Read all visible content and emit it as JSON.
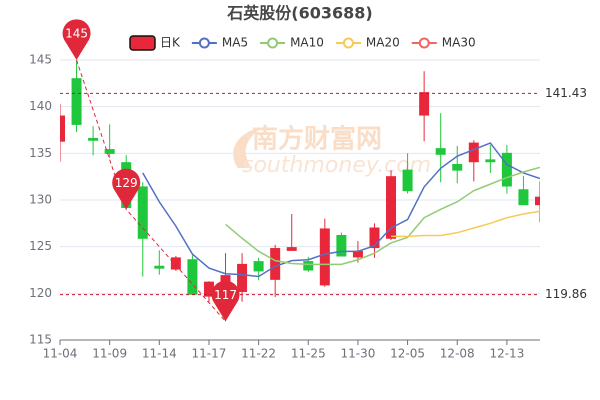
{
  "chart_data": {
    "type": "candlestick",
    "title": "石英股份(603688)",
    "watermark": [
      "南方财富网",
      "southmoney.com"
    ],
    "categories": [
      "11-04",
      null,
      null,
      "11-09",
      null,
      null,
      "11-14",
      null,
      null,
      "11-17",
      null,
      null,
      "11-22",
      null,
      null,
      "11-25",
      null,
      null,
      "11-30",
      null,
      null,
      "12-05",
      null,
      null,
      "12-08",
      null,
      null,
      "12-13",
      null,
      null
    ],
    "ylim": [
      115,
      145
    ],
    "yticks": [
      115,
      120,
      125,
      130,
      135,
      140,
      145
    ],
    "grid": true,
    "up_color": "#e8283a",
    "down_color": "#1fc73c",
    "candles": {
      "name": "日K",
      "open": [
        136.3,
        143.0,
        136.6,
        135.4,
        134.0,
        131.4,
        122.9,
        122.6,
        123.6,
        119.7,
        119.3,
        120.2,
        123.4,
        121.5,
        124.6,
        123.4,
        120.9,
        126.2,
        123.9,
        124.9,
        125.9,
        133.2,
        139.1,
        135.5,
        133.8,
        134.1,
        134.3,
        135.0,
        131.1,
        129.5
      ],
      "close": [
        139.0,
        138.1,
        136.4,
        135.0,
        129.2,
        125.9,
        122.7,
        123.8,
        119.9,
        121.2,
        121.9,
        123.1,
        122.4,
        124.8,
        124.9,
        122.5,
        126.9,
        124.0,
        124.5,
        127.0,
        132.5,
        131.0,
        141.5,
        134.9,
        133.2,
        136.1,
        134.1,
        131.5,
        129.5,
        130.3
      ],
      "high": [
        140.3,
        145,
        137.9,
        138.1,
        134.8,
        131.9,
        124.6,
        124.0,
        124.1,
        121.3,
        124.3,
        124.3,
        123.8,
        125.2,
        128.5,
        123.9,
        128.0,
        126.5,
        125.6,
        127.5,
        133.2,
        135.0,
        143.8,
        139.3,
        135.8,
        136.4,
        135.9,
        135.9,
        132.6,
        132.0
      ],
      "low": [
        134.1,
        137.3,
        134.8,
        134.5,
        129,
        121.8,
        122.0,
        122.4,
        119.9,
        119.0,
        117,
        119.1,
        121.4,
        119.6,
        124.6,
        122.3,
        120.7,
        124.0,
        123.3,
        123.8,
        125.7,
        130.7,
        136.3,
        131.9,
        131.8,
        132.0,
        132.9,
        130.7,
        129.5,
        127.6
      ]
    },
    "series": [
      {
        "name": "MA5",
        "color": "#5470c6",
        "values": [
          null,
          null,
          null,
          null,
          null,
          132.9,
          129.8,
          127.2,
          124.2,
          122.7,
          122.1,
          122.0,
          121.8,
          122.9,
          123.5,
          123.6,
          124.2,
          124.5,
          124.5,
          125.1,
          127.0,
          127.9,
          131.4,
          133.4,
          134.7,
          135.4,
          136.1,
          133.8,
          132.9,
          132.3
        ]
      },
      {
        "name": "MA10",
        "color": "#91cc75",
        "values": [
          null,
          null,
          null,
          null,
          null,
          null,
          null,
          null,
          null,
          null,
          127.4,
          125.9,
          124.5,
          123.5,
          123.2,
          123.1,
          123.1,
          123.1,
          123.6,
          124.3,
          125.4,
          126.0,
          128.1,
          129.0,
          129.8,
          131.0,
          131.7,
          132.4,
          133.0,
          133.5
        ]
      },
      {
        "name": "MA20",
        "color": "#fac858",
        "values": [
          null,
          null,
          null,
          null,
          null,
          null,
          null,
          null,
          null,
          null,
          null,
          null,
          null,
          null,
          null,
          null,
          null,
          null,
          null,
          null,
          126.1,
          126.1,
          126.2,
          126.2,
          126.5,
          127.0,
          127.5,
          128.1,
          128.5,
          128.8
        ]
      },
      {
        "name": "MA30",
        "color": "#ee6666",
        "values": [
          null,
          null,
          null,
          null,
          null,
          null,
          null,
          null,
          null,
          null,
          null,
          null,
          null,
          null,
          null,
          null,
          null,
          null,
          null,
          null,
          null,
          null,
          null,
          null,
          null,
          null,
          null,
          null,
          null,
          null
        ]
      }
    ],
    "mark_lines": [
      141.43,
      119.86
    ],
    "mark_points": [
      145,
      129,
      117
    ]
  }
}
